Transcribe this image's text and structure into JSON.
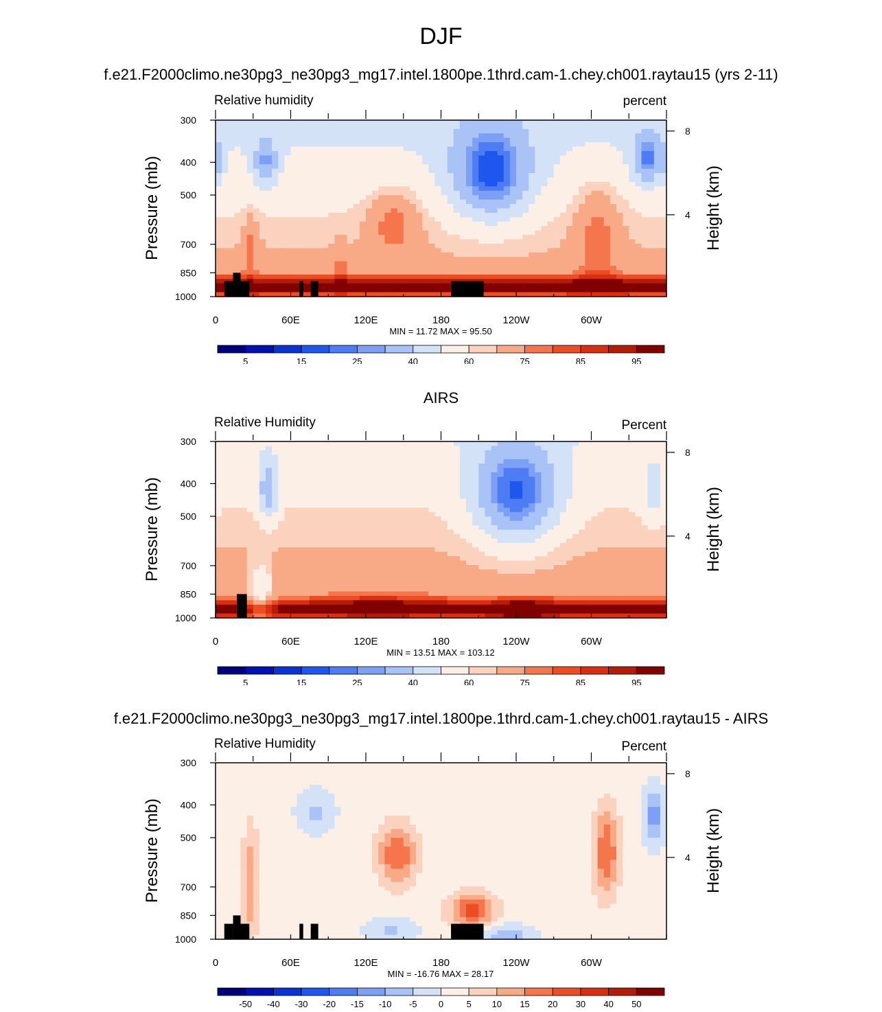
{
  "figure": {
    "season": "DJF"
  },
  "colors": {
    "rh_levels": [
      "#00007f",
      "#0010b3",
      "#0a33d6",
      "#1f57ee",
      "#4d7cf4",
      "#7ca0f6",
      "#a9c3f7",
      "#d4e2f8",
      "#fcefe6",
      "#fad2bd",
      "#f8aa87",
      "#f5764d",
      "#ec4d23",
      "#d92e10",
      "#b31c07",
      "#800000"
    ],
    "diff_levels": [
      "#00007f",
      "#0010b3",
      "#0a33d6",
      "#1f57ee",
      "#4d7cf4",
      "#7ca0f6",
      "#a9c3f7",
      "#d4e2f8",
      "#fcefe6",
      "#fad2bd",
      "#f8aa87",
      "#f5764d",
      "#ec4d23",
      "#d92e10",
      "#b31c07",
      "#800000"
    ],
    "topography": "#000000"
  },
  "panels": [
    {
      "title": "f.e21.F2000climo.ne30pg3_ne30pg3_mg17.intel.1800pe.1thrd.cam-1.chey.ch001.raytau15 (yrs 2-11)",
      "left_string": "Relative humidity",
      "right_string": "percent",
      "minmax": "MIN =   11.72  MAX =   95.50",
      "colorbar_labels": [
        "5",
        "15",
        "25",
        "40",
        "60",
        "75",
        "85",
        "95"
      ]
    },
    {
      "title": "AIRS",
      "left_string": "Relative Humidity",
      "right_string": "Percent",
      "minmax": "MIN =  13.51  MAX = 103.12",
      "colorbar_labels": [
        "5",
        "15",
        "25",
        "40",
        "60",
        "75",
        "85",
        "95"
      ]
    },
    {
      "title": "f.e21.F2000climo.ne30pg3_ne30pg3_mg17.intel.1800pe.1thrd.cam-1.chey.ch001.raytau15 - AIRS",
      "left_string": "Relative Humidity",
      "right_string": "Percent",
      "minmax": "MIN = -16.76  MAX =  28.17",
      "colorbar_labels": [
        "-50",
        "-40",
        "-30",
        "-20",
        "-15",
        "-10",
        "-5",
        "0",
        "5",
        "10",
        "15",
        "20",
        "30",
        "40",
        "50"
      ]
    }
  ],
  "chart_data": [
    {
      "type": "heatmap",
      "title": "f.e21.F2000climo.ne30pg3_ne30pg3_mg17.intel.1800pe.1thrd.cam-1.chey.ch001.raytau15 (yrs 2-11)",
      "variable": "Relative humidity",
      "units": "percent",
      "xlabel": "",
      "ylabel": "Pressure (mb)",
      "ylabel_right": "Height (km)",
      "x_ticks": [
        "0",
        "60E",
        "120E",
        "180",
        "120W",
        "60W"
      ],
      "y_ticks": [
        "300",
        "400",
        "500",
        "700",
        "850",
        "1000"
      ],
      "y_right_ticks": [
        "8",
        "4"
      ],
      "xlim": [
        0,
        360
      ],
      "ylim": [
        1000,
        300
      ],
      "y_scale": "log",
      "levels": [
        5,
        10,
        15,
        20,
        25,
        30,
        40,
        50,
        60,
        65,
        75,
        80,
        85,
        90,
        95
      ],
      "min": 11.72,
      "max": 95.5,
      "features": [
        {
          "lon": 220,
          "p": 430,
          "value": 12,
          "desc": "dry minimum near 140W"
        },
        {
          "lon": 345,
          "p": 400,
          "value": 22,
          "desc": "dry area near 15W"
        },
        {
          "lon": 42,
          "p": 400,
          "value": 25,
          "desc": "dry area near 40E"
        },
        {
          "lon": 142,
          "p": 600,
          "value": 78,
          "desc": "moist maximum near 140E"
        },
        {
          "lon": 200,
          "p": 920,
          "value": 95,
          "desc": "boundary-layer moist band"
        }
      ]
    },
    {
      "type": "heatmap",
      "title": "AIRS",
      "variable": "Relative Humidity",
      "units": "Percent",
      "xlabel": "",
      "ylabel": "Pressure (mb)",
      "ylabel_right": "Height (km)",
      "x_ticks": [
        "0",
        "60E",
        "120E",
        "180",
        "120W",
        "60W"
      ],
      "y_ticks": [
        "300",
        "400",
        "500",
        "700",
        "850",
        "1000"
      ],
      "y_right_ticks": [
        "8",
        "4"
      ],
      "xlim": [
        0,
        360
      ],
      "ylim": [
        1000,
        300
      ],
      "y_scale": "log",
      "levels": [
        5,
        10,
        15,
        20,
        25,
        30,
        40,
        50,
        60,
        65,
        75,
        80,
        85,
        90,
        95
      ],
      "min": 13.51,
      "max": 103.12,
      "features": [
        {
          "lon": 240,
          "p": 420,
          "value": 14,
          "desc": "dry minimum near 120W"
        },
        {
          "lon": 42,
          "p": 420,
          "value": 22,
          "desc": "dry area near 40E"
        },
        {
          "lon": 140,
          "p": 900,
          "value": 95,
          "desc": "moist band near 140E"
        },
        {
          "lon": 245,
          "p": 960,
          "value": 100,
          "desc": "moist maximum near 115W"
        }
      ]
    },
    {
      "type": "heatmap",
      "title": "f.e21.F2000climo.ne30pg3_ne30pg3_mg17.intel.1800pe.1thrd.cam-1.chey.ch001.raytau15 - AIRS",
      "variable": "Relative Humidity",
      "units": "Percent",
      "xlabel": "",
      "ylabel": "Pressure (mb)",
      "ylabel_right": "Height (km)",
      "x_ticks": [
        "0",
        "60E",
        "120E",
        "180",
        "120W",
        "60W"
      ],
      "y_ticks": [
        "300",
        "400",
        "500",
        "700",
        "850",
        "1000"
      ],
      "y_right_ticks": [
        "8",
        "4"
      ],
      "xlim": [
        0,
        360
      ],
      "ylim": [
        1000,
        300
      ],
      "y_scale": "log",
      "levels": [
        -50,
        -40,
        -30,
        -20,
        -15,
        -10,
        -5,
        0,
        5,
        10,
        15,
        20,
        30,
        40,
        50
      ],
      "min": -16.76,
      "max": 28.17,
      "features": [
        {
          "lon": 145,
          "p": 560,
          "value": 20,
          "desc": "positive bias near 145E"
        },
        {
          "lon": 205,
          "p": 820,
          "value": 22,
          "desc": "positive bias near 155W"
        },
        {
          "lon": 312,
          "p": 550,
          "value": 20,
          "desc": "positive bias near 50W"
        },
        {
          "lon": 350,
          "p": 430,
          "value": -12,
          "desc": "negative bias near 10W"
        },
        {
          "lon": 230,
          "p": 980,
          "value": -10,
          "desc": "negative bias near surface 130W"
        }
      ]
    }
  ]
}
